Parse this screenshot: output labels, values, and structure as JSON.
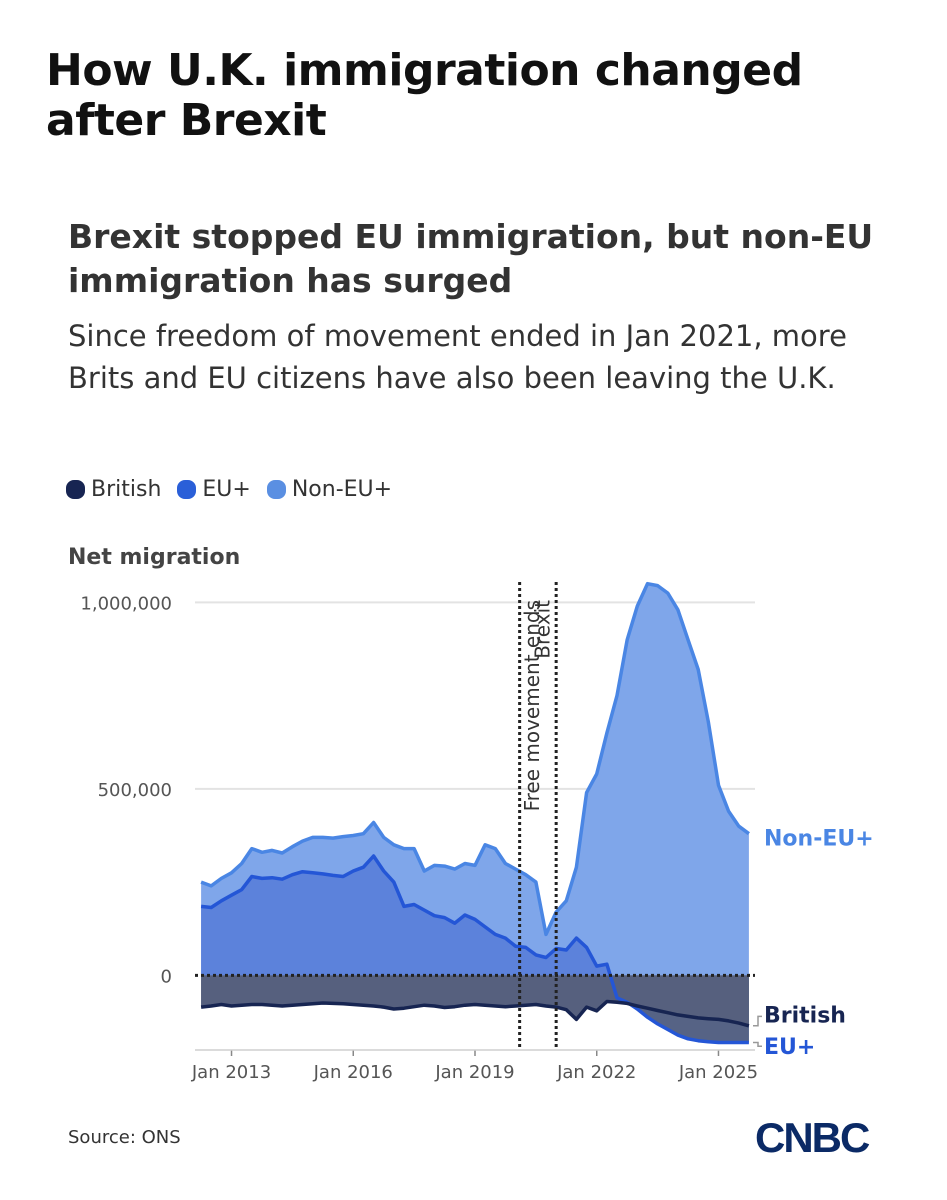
{
  "headline": "How U.K. immigration changed after Brexit",
  "chart_data": {
    "type": "area",
    "title": "Brexit stopped EU immigration, but non-EU immigration has surged",
    "subtitle": "Since freedom of movement ended in Jan 2021, more Brits and EU citizens have also been leaving the U.K.",
    "ylabel": "Net migration",
    "xlabel": "",
    "ylim": [
      -200000,
      1060000
    ],
    "xlim": [
      2012.1,
      2025.9
    ],
    "y_ticks": [
      {
        "value": 0,
        "label": "0"
      },
      {
        "value": 500000,
        "label": "500,000"
      },
      {
        "value": 1000000,
        "label": "1,000,000"
      }
    ],
    "x_ticks": [
      {
        "value": 2013,
        "label": "Jan 2013"
      },
      {
        "value": 2016,
        "label": "Jan 2016"
      },
      {
        "value": 2019,
        "label": "Jan 2019"
      },
      {
        "value": 2022,
        "label": "Jan 2022"
      },
      {
        "value": 2025,
        "label": "Jan 2025"
      }
    ],
    "grid": true,
    "legend_position": "top-left",
    "annotations": [
      {
        "label": "Brexit",
        "x": 2020.1
      },
      {
        "label": "Free movement ends",
        "x": 2021.0
      }
    ],
    "series": [
      {
        "name": "British",
        "color": "#172552",
        "end_label": "British",
        "x": [
          2012.25,
          2012.5,
          2012.75,
          2013,
          2013.25,
          2013.5,
          2013.75,
          2014,
          2014.25,
          2014.5,
          2014.75,
          2015,
          2015.25,
          2015.5,
          2015.75,
          2016,
          2016.25,
          2016.5,
          2016.75,
          2017,
          2017.25,
          2017.5,
          2017.75,
          2018,
          2018.25,
          2018.5,
          2018.75,
          2019,
          2019.25,
          2019.5,
          2019.75,
          2020,
          2020.25,
          2020.5,
          2020.75,
          2021,
          2021.25,
          2021.5,
          2021.75,
          2022,
          2022.25,
          2022.5,
          2022.75,
          2023,
          2023.25,
          2023.5,
          2023.75,
          2024,
          2024.25,
          2024.5,
          2024.75,
          2025,
          2025.25,
          2025.5,
          2025.75
        ],
        "values": [
          -85000,
          -82000,
          -78000,
          -82000,
          -80000,
          -78000,
          -78000,
          -80000,
          -82000,
          -80000,
          -78000,
          -76000,
          -74000,
          -75000,
          -76000,
          -78000,
          -80000,
          -82000,
          -85000,
          -90000,
          -88000,
          -84000,
          -80000,
          -82000,
          -86000,
          -84000,
          -80000,
          -78000,
          -80000,
          -82000,
          -84000,
          -82000,
          -80000,
          -78000,
          -82000,
          -85000,
          -92000,
          -118000,
          -85000,
          -95000,
          -70000,
          -72000,
          -75000,
          -82000,
          -88000,
          -94000,
          -100000,
          -106000,
          -110000,
          -114000,
          -116000,
          -118000,
          -122000,
          -128000,
          -135000
        ]
      },
      {
        "name": "EU+",
        "color": "#2a5fd8",
        "end_label": "EU+",
        "x": [
          2012.25,
          2012.5,
          2012.75,
          2013,
          2013.25,
          2013.5,
          2013.75,
          2014,
          2014.25,
          2014.5,
          2014.75,
          2015,
          2015.25,
          2015.5,
          2015.75,
          2016,
          2016.25,
          2016.5,
          2016.75,
          2017,
          2017.25,
          2017.5,
          2017.75,
          2018,
          2018.25,
          2018.5,
          2018.75,
          2019,
          2019.25,
          2019.5,
          2019.75,
          2020,
          2020.25,
          2020.5,
          2020.75,
          2021,
          2021.25,
          2021.5,
          2021.75,
          2022,
          2022.25,
          2022.5,
          2022.75,
          2023,
          2023.25,
          2023.5,
          2023.75,
          2024,
          2024.25,
          2024.5,
          2024.75,
          2025,
          2025.25,
          2025.5,
          2025.75
        ],
        "values": [
          185000,
          182000,
          200000,
          215000,
          230000,
          265000,
          260000,
          262000,
          258000,
          270000,
          278000,
          275000,
          272000,
          268000,
          265000,
          280000,
          290000,
          320000,
          280000,
          250000,
          185000,
          190000,
          175000,
          160000,
          155000,
          140000,
          162000,
          150000,
          130000,
          110000,
          100000,
          78000,
          75000,
          55000,
          48000,
          72000,
          68000,
          100000,
          75000,
          25000,
          30000,
          -60000,
          -72000,
          -90000,
          -112000,
          -130000,
          -145000,
          -160000,
          -170000,
          -175000,
          -178000,
          -180000,
          -180000,
          -180000,
          -180000
        ]
      },
      {
        "name": "Non-EU+",
        "color": "#5a8fe2",
        "end_label": "Non-EU+",
        "x": [
          2012.25,
          2012.5,
          2012.75,
          2013,
          2013.25,
          2013.5,
          2013.75,
          2014,
          2014.25,
          2014.5,
          2014.75,
          2015,
          2015.25,
          2015.5,
          2015.75,
          2016,
          2016.25,
          2016.5,
          2016.75,
          2017,
          2017.25,
          2017.5,
          2017.75,
          2018,
          2018.25,
          2018.5,
          2018.75,
          2019,
          2019.25,
          2019.5,
          2019.75,
          2020,
          2020.25,
          2020.5,
          2020.75,
          2021,
          2021.25,
          2021.5,
          2021.75,
          2022,
          2022.25,
          2022.5,
          2022.75,
          2023,
          2023.25,
          2023.5,
          2023.75,
          2024,
          2024.25,
          2024.5,
          2024.75,
          2025,
          2025.25,
          2025.5,
          2025.75
        ],
        "values": [
          250000,
          240000,
          260000,
          275000,
          300000,
          340000,
          330000,
          335000,
          328000,
          345000,
          360000,
          370000,
          370000,
          368000,
          372000,
          375000,
          380000,
          410000,
          370000,
          350000,
          340000,
          340000,
          280000,
          295000,
          293000,
          285000,
          300000,
          295000,
          350000,
          340000,
          300000,
          285000,
          270000,
          250000,
          110000,
          170000,
          200000,
          290000,
          490000,
          540000,
          650000,
          750000,
          900000,
          990000,
          1050000,
          1045000,
          1025000,
          980000,
          900000,
          820000,
          680000,
          510000,
          440000,
          400000,
          380000
        ]
      }
    ]
  },
  "source": "Source: ONS",
  "logo": "CNBC"
}
